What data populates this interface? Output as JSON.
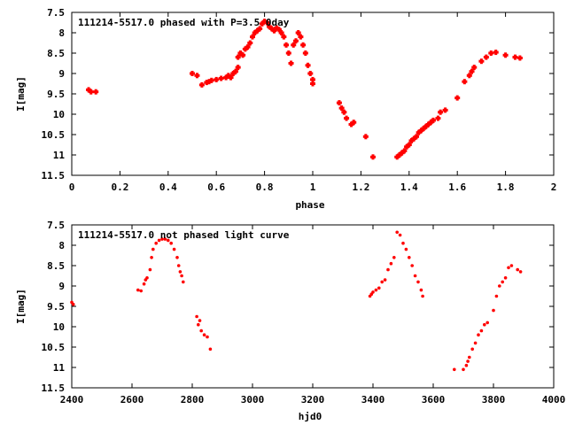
{
  "chart_data": [
    {
      "type": "scatter",
      "title": "111214-5517.0 phased with P=3.5 0day",
      "xlabel": "phase",
      "ylabel": "I[mag]",
      "xlim": [
        0,
        2
      ],
      "ylim": [
        7.5,
        11.5
      ],
      "y_inverted": true,
      "grid": false,
      "x_ticks": [
        "0",
        "0.2",
        "0.4",
        "0.6",
        "0.8",
        "1",
        "1.2",
        "1.4",
        "1.6",
        "1.8",
        "2"
      ],
      "y_ticks": [
        "7.5",
        "8",
        "8.5",
        "9",
        "9.5",
        "10",
        "10.5",
        "11",
        "11.5"
      ],
      "series": [
        {
          "color": "#ff0000",
          "marker": "cross",
          "points": [
            [
              0.07,
              9.4
            ],
            [
              0.08,
              9.45
            ],
            [
              0.1,
              9.45
            ],
            [
              0.54,
              9.28
            ],
            [
              0.56,
              9.22
            ],
            [
              0.57,
              9.2
            ],
            [
              0.58,
              9.17
            ],
            [
              0.6,
              9.15
            ],
            [
              0.62,
              9.12
            ],
            [
              0.64,
              9.1
            ],
            [
              0.65,
              9.05
            ],
            [
              0.66,
              9.1
            ],
            [
              0.67,
              9.0
            ],
            [
              0.68,
              8.95
            ],
            [
              0.69,
              8.85
            ],
            [
              0.69,
              8.6
            ],
            [
              0.7,
              8.5
            ],
            [
              0.71,
              8.55
            ],
            [
              0.72,
              8.4
            ],
            [
              0.73,
              8.35
            ],
            [
              0.74,
              8.25
            ],
            [
              0.75,
              8.1
            ],
            [
              0.76,
              8.0
            ],
            [
              0.77,
              7.95
            ],
            [
              0.78,
              7.9
            ],
            [
              0.79,
              7.78
            ],
            [
              0.8,
              7.72
            ],
            [
              0.81,
              7.75
            ],
            [
              0.82,
              7.85
            ],
            [
              0.83,
              7.9
            ],
            [
              0.84,
              7.95
            ],
            [
              0.85,
              7.88
            ],
            [
              0.86,
              7.92
            ],
            [
              0.87,
              8.0
            ],
            [
              0.88,
              8.1
            ],
            [
              0.89,
              8.3
            ],
            [
              0.9,
              8.5
            ],
            [
              0.91,
              8.75
            ],
            [
              0.92,
              8.3
            ],
            [
              0.93,
              8.2
            ],
            [
              0.94,
              8.0
            ],
            [
              0.95,
              8.1
            ],
            [
              0.96,
              8.3
            ],
            [
              0.97,
              8.5
            ],
            [
              0.98,
              8.8
            ],
            [
              0.99,
              9.0
            ],
            [
              1.0,
              9.15
            ],
            [
              1.0,
              9.25
            ],
            [
              0.5,
              9.0
            ],
            [
              0.52,
              9.05
            ],
            [
              1.11,
              9.72
            ],
            [
              1.12,
              9.85
            ],
            [
              1.13,
              9.95
            ],
            [
              1.14,
              10.1
            ],
            [
              1.16,
              10.25
            ],
            [
              1.17,
              10.2
            ],
            [
              1.22,
              10.55
            ],
            [
              1.25,
              11.05
            ],
            [
              1.35,
              11.05
            ],
            [
              1.36,
              11.0
            ],
            [
              1.37,
              10.95
            ],
            [
              1.38,
              10.9
            ],
            [
              1.39,
              10.8
            ],
            [
              1.4,
              10.75
            ],
            [
              1.41,
              10.65
            ],
            [
              1.42,
              10.6
            ],
            [
              1.43,
              10.55
            ],
            [
              1.44,
              10.45
            ],
            [
              1.45,
              10.4
            ],
            [
              1.46,
              10.35
            ],
            [
              1.47,
              10.3
            ],
            [
              1.48,
              10.25
            ],
            [
              1.49,
              10.2
            ],
            [
              1.5,
              10.15
            ],
            [
              1.52,
              10.1
            ],
            [
              1.53,
              9.95
            ],
            [
              1.55,
              9.9
            ],
            [
              1.6,
              9.6
            ],
            [
              1.63,
              9.2
            ],
            [
              1.65,
              9.05
            ],
            [
              1.66,
              8.95
            ],
            [
              1.67,
              8.85
            ],
            [
              1.7,
              8.7
            ],
            [
              1.72,
              8.6
            ],
            [
              1.74,
              8.5
            ],
            [
              1.76,
              8.48
            ],
            [
              1.8,
              8.55
            ],
            [
              1.84,
              8.6
            ],
            [
              1.86,
              8.62
            ]
          ]
        }
      ]
    },
    {
      "type": "scatter",
      "title": "111214-5517.0 not phased light curve",
      "xlabel": "hjd0",
      "ylabel": "I[mag]",
      "xlim": [
        2400,
        4000
      ],
      "ylim": [
        7.5,
        11.5
      ],
      "y_inverted": true,
      "grid": false,
      "x_ticks": [
        "2400",
        "2600",
        "2800",
        "3000",
        "3200",
        "3400",
        "3600",
        "3800",
        "4000"
      ],
      "y_ticks": [
        "7.5",
        "8",
        "8.5",
        "9",
        "9.5",
        "10",
        "10.5",
        "11",
        "11.5"
      ],
      "series": [
        {
          "color": "#ff0000",
          "marker": "dot",
          "points": [
            [
              2400,
              9.4
            ],
            [
              2405,
              9.45
            ],
            [
              2620,
              9.1
            ],
            [
              2630,
              9.12
            ],
            [
              2640,
              8.95
            ],
            [
              2645,
              8.85
            ],
            [
              2650,
              8.8
            ],
            [
              2660,
              8.6
            ],
            [
              2665,
              8.3
            ],
            [
              2670,
              8.1
            ],
            [
              2680,
              7.95
            ],
            [
              2690,
              7.88
            ],
            [
              2700,
              7.85
            ],
            [
              2710,
              7.85
            ],
            [
              2720,
              7.88
            ],
            [
              2730,
              7.95
            ],
            [
              2740,
              8.1
            ],
            [
              2750,
              8.3
            ],
            [
              2755,
              8.5
            ],
            [
              2760,
              8.65
            ],
            [
              2765,
              8.75
            ],
            [
              2770,
              8.9
            ],
            [
              2815,
              9.75
            ],
            [
              2820,
              9.95
            ],
            [
              2825,
              9.85
            ],
            [
              2830,
              10.1
            ],
            [
              2840,
              10.2
            ],
            [
              2850,
              10.25
            ],
            [
              2860,
              10.55
            ],
            [
              3390,
              9.25
            ],
            [
              3395,
              9.2
            ],
            [
              3400,
              9.15
            ],
            [
              3410,
              9.1
            ],
            [
              3420,
              9.05
            ],
            [
              3430,
              8.9
            ],
            [
              3440,
              8.85
            ],
            [
              3450,
              8.6
            ],
            [
              3460,
              8.45
            ],
            [
              3470,
              8.3
            ],
            [
              3480,
              7.68
            ],
            [
              3490,
              7.75
            ],
            [
              3500,
              7.95
            ],
            [
              3510,
              8.1
            ],
            [
              3520,
              8.3
            ],
            [
              3530,
              8.5
            ],
            [
              3540,
              8.75
            ],
            [
              3550,
              8.9
            ],
            [
              3560,
              9.1
            ],
            [
              3565,
              9.25
            ],
            [
              3670,
              11.05
            ],
            [
              3700,
              11.05
            ],
            [
              3710,
              10.95
            ],
            [
              3715,
              10.85
            ],
            [
              3720,
              10.75
            ],
            [
              3730,
              10.55
            ],
            [
              3740,
              10.4
            ],
            [
              3750,
              10.2
            ],
            [
              3760,
              10.1
            ],
            [
              3770,
              9.95
            ],
            [
              3780,
              9.9
            ],
            [
              3800,
              9.6
            ],
            [
              3810,
              9.25
            ],
            [
              3820,
              9.0
            ],
            [
              3830,
              8.9
            ],
            [
              3840,
              8.8
            ],
            [
              3850,
              8.55
            ],
            [
              3860,
              8.5
            ],
            [
              3880,
              8.6
            ],
            [
              3890,
              8.65
            ]
          ]
        }
      ]
    }
  ]
}
